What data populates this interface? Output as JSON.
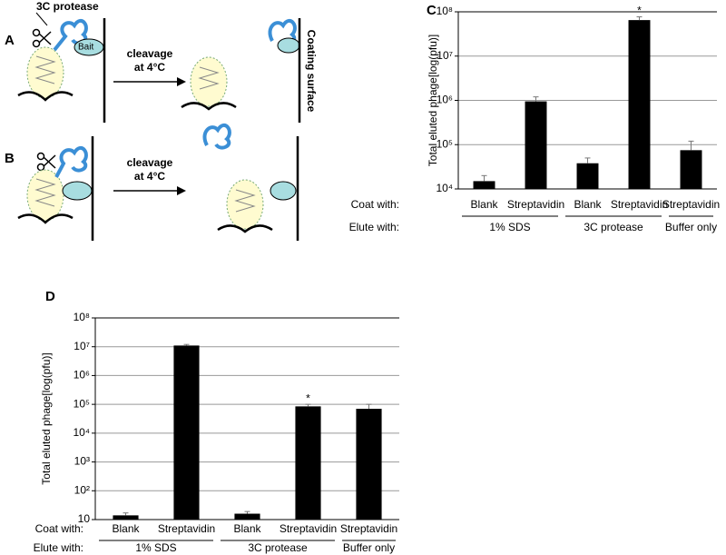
{
  "diagram": {
    "panels": [
      "A",
      "B"
    ],
    "protease_label": "3C protease",
    "bait_label": "Bait",
    "arrow_labels": [
      [
        "cleavage",
        "at 4°C"
      ],
      [
        "cleavage",
        "at 4°C"
      ]
    ],
    "surface_label": "Coating surface"
  },
  "chart_data": [
    {
      "type": "bar",
      "panel": "C",
      "y_label": "Total eluted phage[log(pfu)]",
      "log_scale": true,
      "grid": true,
      "color": "#000000",
      "row_labels": [
        "Coat with:",
        "Elute with:"
      ],
      "groups": [
        {
          "label": "1% SDS",
          "categories": [
            "Blank",
            "Streptavidin"
          ]
        },
        {
          "label": "3C protease",
          "categories": [
            "Blank",
            "Streptavidin"
          ]
        },
        {
          "label": "Buffer only",
          "categories": [
            "Streptavidin"
          ]
        }
      ],
      "values": [
        15000,
        950000,
        38000,
        65000000,
        75000
      ],
      "errors": [
        5000,
        250000,
        12000,
        12000000,
        45000
      ],
      "markers": [
        null,
        null,
        null,
        "*",
        null
      ],
      "ylim": [
        10000,
        100000000
      ],
      "yticks": [
        {
          "value": 10000,
          "label": "10⁴"
        },
        {
          "value": 100000,
          "label": "10⁵"
        },
        {
          "value": 1000000,
          "label": "10⁶"
        },
        {
          "value": 10000000,
          "label": "10⁷"
        },
        {
          "value": 100000000,
          "label": "10⁸"
        }
      ]
    },
    {
      "type": "bar",
      "panel": "D",
      "y_label": "Total eluted phage[log(pfu)]",
      "log_scale": true,
      "grid": true,
      "color": "#000000",
      "row_labels": [
        "Coat with:",
        "Elute with:"
      ],
      "groups": [
        {
          "label": "1% SDS",
          "categories": [
            "Blank",
            "Streptavidin"
          ]
        },
        {
          "label": "3C protease",
          "categories": [
            "Blank",
            "Streptavidin"
          ]
        },
        {
          "label": "Buffer only",
          "categories": [
            "Streptavidin"
          ]
        }
      ],
      "values": [
        14,
        11000000,
        16,
        85000,
        70000
      ],
      "errors": [
        3,
        1000000,
        3,
        15000,
        30000
      ],
      "markers": [
        null,
        null,
        null,
        "*",
        null
      ],
      "ylim": [
        10,
        100000000
      ],
      "yticks": [
        10,
        {
          "value": 100,
          "label": "10²"
        },
        {
          "value": 1000,
          "label": "10³"
        },
        {
          "value": 10000,
          "label": "10⁴"
        },
        {
          "value": 100000,
          "label": "10⁵"
        },
        {
          "value": 1000000,
          "label": "10⁶"
        },
        {
          "value": 10000000,
          "label": "10⁷"
        },
        {
          "value": 100000000,
          "label": "10⁸"
        }
      ]
    }
  ]
}
